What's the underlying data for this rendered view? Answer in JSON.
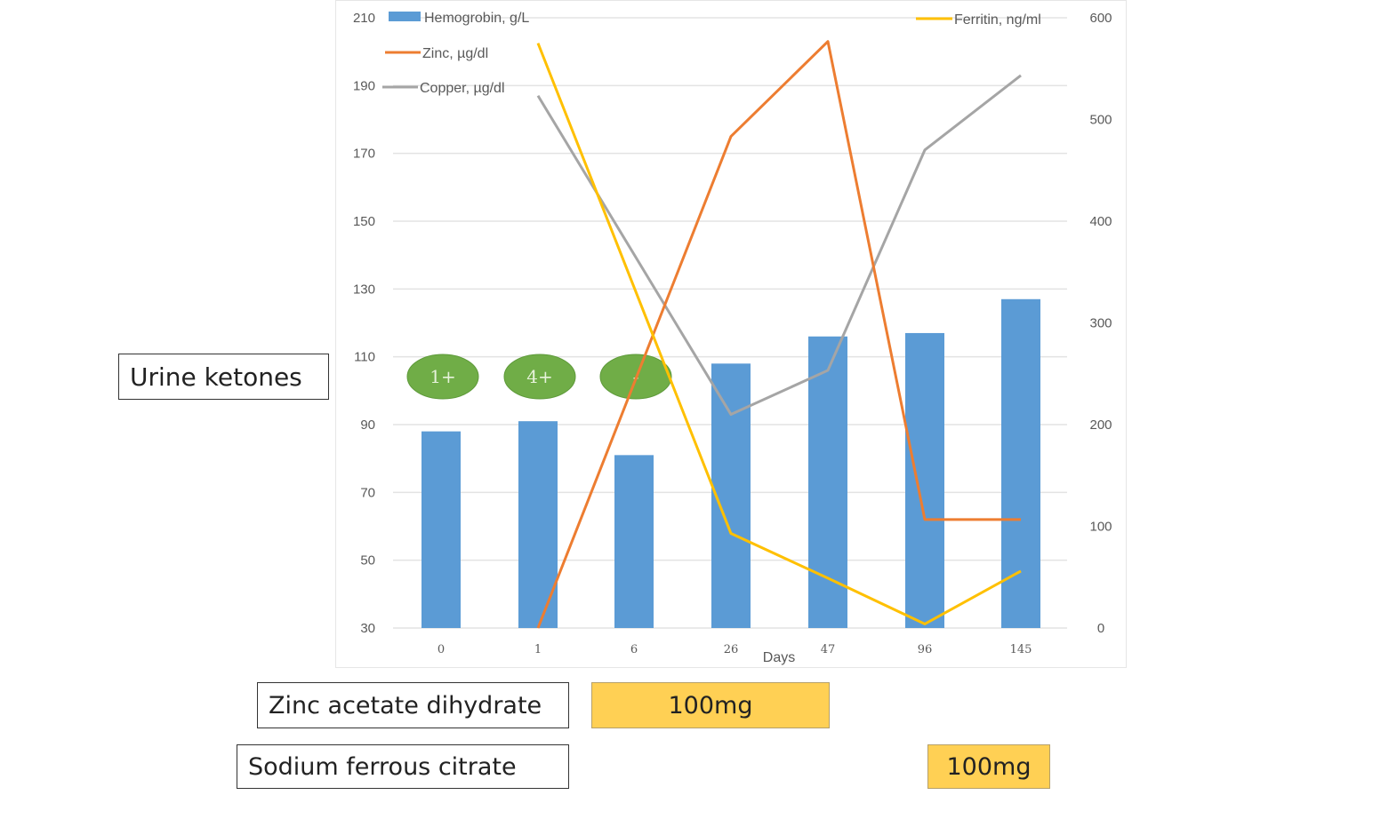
{
  "chart_data": {
    "type": "bar+line",
    "title": "",
    "xlabel": "Days",
    "categories": [
      "0",
      "1",
      "6",
      "26",
      "47",
      "96",
      "145"
    ],
    "left_axis": {
      "ylim": [
        30,
        210
      ],
      "ticks": [
        30,
        50,
        70,
        90,
        110,
        130,
        150,
        170,
        190,
        210
      ]
    },
    "right_axis": {
      "ylim": [
        0,
        600
      ],
      "ticks": [
        0,
        100,
        200,
        300,
        400,
        500,
        600
      ]
    },
    "grid": true,
    "series": [
      {
        "name": "Hemogrobin, g/L",
        "type": "bar",
        "axis": "left",
        "color": "#5b9bd5",
        "values": [
          88,
          91,
          81,
          108,
          116,
          117,
          127
        ]
      },
      {
        "name": "Zinc, µg/dl",
        "type": "line",
        "axis": "left",
        "color": "#ed7d31",
        "values": [
          null,
          30,
          null,
          175,
          203,
          62,
          62
        ]
      },
      {
        "name": "Copper, µg/dl",
        "type": "line",
        "axis": "left",
        "color": "#a5a5a5",
        "values": [
          null,
          187,
          null,
          93,
          106,
          171,
          193
        ]
      },
      {
        "name": "Ferritin, ng/ml",
        "type": "line",
        "axis": "right",
        "color": "#ffc000",
        "values": [
          null,
          575,
          null,
          93,
          49,
          4,
          56
        ]
      }
    ],
    "legend": {
      "placement": "top"
    },
    "annotations": {
      "urine_ketones": {
        "label": "Urine ketones",
        "values": [
          "1+",
          "4+",
          "-"
        ],
        "days": [
          "0",
          "1",
          "6"
        ],
        "color": "#70ad47"
      }
    }
  },
  "treatments": [
    {
      "label": "Zinc acetate dihydrate",
      "dose": "100mg"
    },
    {
      "label": "Sodium ferrous citrate",
      "dose": "100mg"
    }
  ]
}
